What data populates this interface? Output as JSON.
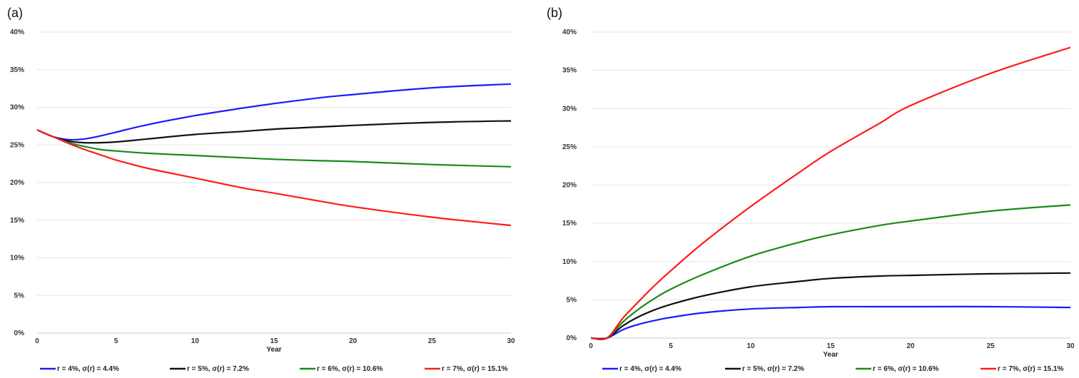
{
  "chart_data": [
    {
      "type": "line",
      "panel_label": "(a)",
      "xlabel": "Year",
      "ylabel": "",
      "xlim": [
        0,
        30
      ],
      "ylim": [
        0,
        40
      ],
      "xticks": [
        0,
        5,
        10,
        15,
        20,
        25,
        30
      ],
      "yticks": [
        "0%",
        "5%",
        "10%",
        "15%",
        "20%",
        "25%",
        "30%",
        "35%",
        "40%"
      ],
      "grid": "horizontal",
      "legend_position": "bottom",
      "series": [
        {
          "name": "r = 4%, σ(r) = 4.4%",
          "color": "#1a1aff",
          "x": [
            0,
            1,
            2,
            3,
            4,
            5,
            7,
            10,
            13,
            15,
            18,
            20,
            25,
            30
          ],
          "y": [
            27,
            26.1,
            25.7,
            25.8,
            26.2,
            26.7,
            27.7,
            28.9,
            29.9,
            30.5,
            31.3,
            31.7,
            32.6,
            33.1
          ]
        },
        {
          "name": "r = 5%, σ(r) = 7.2%",
          "color": "#111111",
          "x": [
            0,
            1,
            2,
            3,
            4,
            5,
            7,
            10,
            13,
            15,
            18,
            20,
            25,
            30
          ],
          "y": [
            27,
            26.1,
            25.5,
            25.3,
            25.3,
            25.4,
            25.8,
            26.4,
            26.8,
            27.1,
            27.4,
            27.6,
            28.0,
            28.2
          ]
        },
        {
          "name": "r = 6%, σ(r) = 10.6%",
          "color": "#1a8a1a",
          "x": [
            0,
            1,
            2,
            3,
            4,
            5,
            7,
            10,
            13,
            15,
            18,
            20,
            25,
            30
          ],
          "y": [
            27,
            26.1,
            25.3,
            24.8,
            24.4,
            24.2,
            23.9,
            23.6,
            23.3,
            23.1,
            22.9,
            22.8,
            22.4,
            22.1
          ]
        },
        {
          "name": "r = 7%, σ(r) = 15.1%",
          "color": "#ff1a1a",
          "x": [
            0,
            1,
            2,
            3,
            4,
            5,
            7,
            10,
            13,
            15,
            18,
            20,
            25,
            30
          ],
          "y": [
            27,
            26.1,
            25.2,
            24.4,
            23.7,
            23.0,
            21.9,
            20.6,
            19.3,
            18.6,
            17.5,
            16.8,
            15.4,
            14.3
          ]
        }
      ]
    },
    {
      "type": "line",
      "panel_label": "(b)",
      "xlabel": "Year",
      "ylabel": "",
      "xlim": [
        0,
        30
      ],
      "ylim": [
        0,
        40
      ],
      "xticks": [
        0,
        5,
        10,
        15,
        20,
        25,
        30
      ],
      "yticks": [
        "0%",
        "5%",
        "10%",
        "15%",
        "20%",
        "25%",
        "30%",
        "35%",
        "40%"
      ],
      "grid": "horizontal",
      "legend_position": "bottom",
      "series": [
        {
          "name": "r = 4%, σ(r) = 4.4%",
          "color": "#1a1aff",
          "x": [
            0,
            1,
            2,
            3,
            4,
            5,
            7,
            10,
            13,
            15,
            18,
            20,
            25,
            30
          ],
          "y": [
            0,
            0,
            1.1,
            1.8,
            2.3,
            2.7,
            3.3,
            3.8,
            4.0,
            4.1,
            4.1,
            4.1,
            4.1,
            4.0
          ]
        },
        {
          "name": "r = 5%, σ(r) = 7.2%",
          "color": "#111111",
          "x": [
            0,
            1,
            2,
            3,
            4,
            5,
            7,
            10,
            13,
            15,
            18,
            20,
            25,
            30
          ],
          "y": [
            0,
            0,
            1.6,
            2.8,
            3.7,
            4.4,
            5.5,
            6.7,
            7.4,
            7.8,
            8.1,
            8.2,
            8.4,
            8.5
          ]
        },
        {
          "name": "r = 6%, σ(r) = 10.6%",
          "color": "#1a8a1a",
          "x": [
            0,
            1,
            2,
            3,
            4,
            5,
            7,
            10,
            13,
            15,
            18,
            20,
            25,
            30
          ],
          "y": [
            0,
            0,
            2.1,
            3.8,
            5.2,
            6.4,
            8.3,
            10.7,
            12.5,
            13.5,
            14.7,
            15.3,
            16.6,
            17.4
          ]
        },
        {
          "name": "r = 7%, σ(r) = 15.1%",
          "color": "#ff1a1a",
          "x": [
            0,
            1,
            2,
            3,
            4,
            5,
            7,
            10,
            13,
            15,
            18,
            20,
            25,
            30
          ],
          "y": [
            0,
            0,
            2.6,
            4.8,
            6.9,
            8.8,
            12.4,
            17.2,
            21.6,
            24.4,
            28.0,
            30.4,
            34.6,
            38.0
          ]
        }
      ]
    }
  ]
}
